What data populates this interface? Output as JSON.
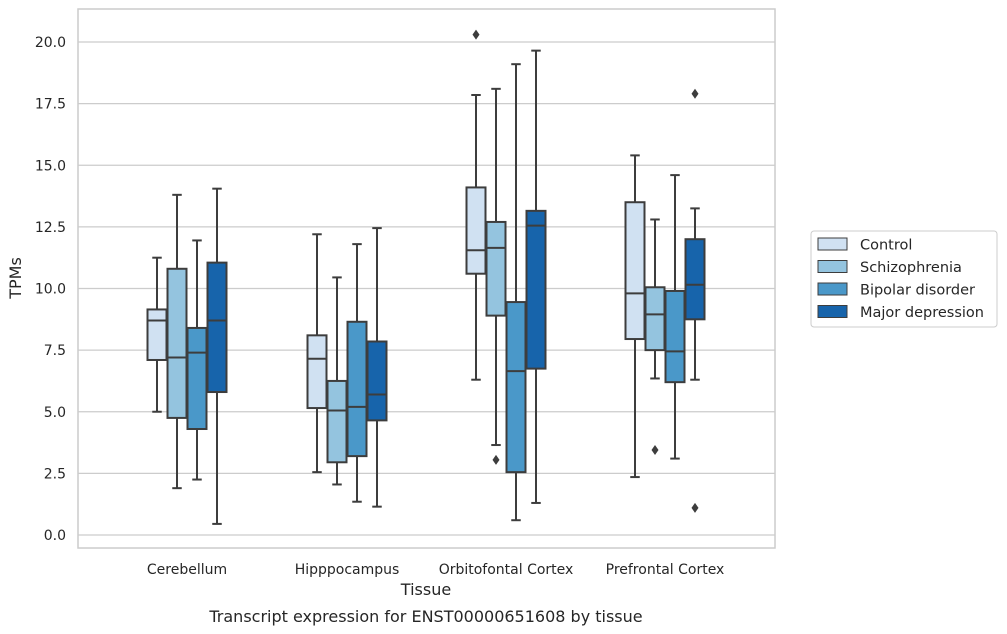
{
  "chart_data": {
    "type": "box",
    "xlabel": "Tissue",
    "ylabel": "TPMs",
    "caption": "Transcript expression for ENST00000651608 by tissue",
    "ylim": [
      -0.45,
      21.4
    ],
    "y_ticks": [
      "0.0",
      "2.5",
      "5.0",
      "7.5",
      "10.0",
      "12.5",
      "15.0",
      "17.5",
      "20.0"
    ],
    "grid": "horizontal",
    "legend_position": "right",
    "categories": [
      "Cerebellum",
      "Hipppocampus",
      "Orbitofontal Cortex",
      "Prefrontal Cortex"
    ],
    "series": [
      {
        "name": "Control",
        "color": "#d0e1f2",
        "boxes": [
          {
            "whislo": 5.0,
            "q1": 7.1,
            "med": 8.7,
            "q3": 9.15,
            "whishi": 11.25,
            "fliers": []
          },
          {
            "whislo": 2.55,
            "q1": 5.15,
            "med": 7.15,
            "q3": 8.1,
            "whishi": 12.2,
            "fliers": []
          },
          {
            "whislo": 6.3,
            "q1": 10.6,
            "med": 11.55,
            "q3": 14.1,
            "whishi": 17.85,
            "fliers": [
              20.3
            ]
          },
          {
            "whislo": 2.35,
            "q1": 7.95,
            "med": 9.8,
            "q3": 13.5,
            "whishi": 15.4,
            "fliers": []
          }
        ]
      },
      {
        "name": "Schizophrenia",
        "color": "#94c4df",
        "boxes": [
          {
            "whislo": 1.9,
            "q1": 4.75,
            "med": 7.2,
            "q3": 10.8,
            "whishi": 13.8,
            "fliers": []
          },
          {
            "whislo": 2.05,
            "q1": 2.95,
            "med": 5.05,
            "q3": 6.25,
            "whishi": 10.45,
            "fliers": []
          },
          {
            "whislo": 3.65,
            "q1": 8.9,
            "med": 11.65,
            "q3": 12.7,
            "whishi": 18.1,
            "fliers": [
              3.05
            ]
          },
          {
            "whislo": 6.35,
            "q1": 7.5,
            "med": 8.95,
            "q3": 10.05,
            "whishi": 12.8,
            "fliers": [
              3.45
            ]
          }
        ]
      },
      {
        "name": "Bipolar disorder",
        "color": "#4a98c9",
        "boxes": [
          {
            "whislo": 2.25,
            "q1": 4.3,
            "med": 7.4,
            "q3": 8.4,
            "whishi": 11.95,
            "fliers": []
          },
          {
            "whislo": 1.35,
            "q1": 3.2,
            "med": 5.2,
            "q3": 8.65,
            "whishi": 11.8,
            "fliers": []
          },
          {
            "whislo": 0.6,
            "q1": 2.55,
            "med": 6.65,
            "q3": 9.45,
            "whishi": 19.1,
            "fliers": []
          },
          {
            "whislo": 3.1,
            "q1": 6.2,
            "med": 7.45,
            "q3": 9.9,
            "whishi": 14.6,
            "fliers": []
          }
        ]
      },
      {
        "name": "Major depression",
        "color": "#1764ab",
        "boxes": [
          {
            "whislo": 0.45,
            "q1": 5.8,
            "med": 8.7,
            "q3": 11.05,
            "whishi": 14.05,
            "fliers": []
          },
          {
            "whislo": 1.15,
            "q1": 4.65,
            "med": 5.7,
            "q3": 7.85,
            "whishi": 12.45,
            "fliers": []
          },
          {
            "whislo": 1.3,
            "q1": 6.75,
            "med": 12.55,
            "q3": 13.15,
            "whishi": 19.65,
            "fliers": []
          },
          {
            "whislo": 6.3,
            "q1": 8.75,
            "med": 10.15,
            "q3": 12.0,
            "whishi": 13.25,
            "fliers": [
              17.9,
              1.1
            ]
          }
        ]
      }
    ]
  },
  "colors": {
    "grid": "#cccccc",
    "frame": "#cccccc",
    "box_edge": "#3d3d3d",
    "text": "#262626"
  }
}
